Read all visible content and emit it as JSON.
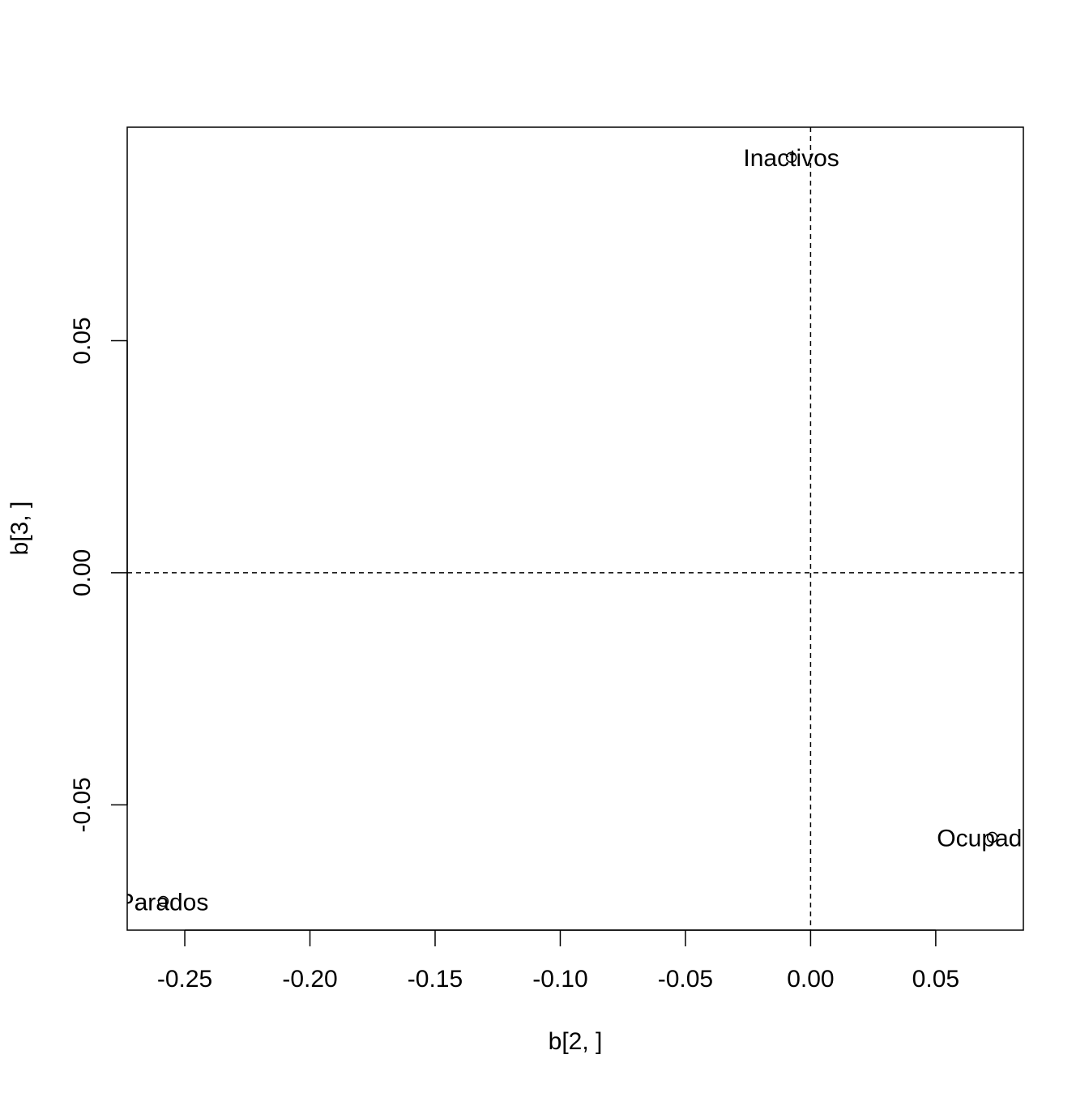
{
  "chart_data": {
    "type": "scatter",
    "title": "",
    "xlabel": "b[2, ]",
    "ylabel": "b[3, ]",
    "xlim": [
      -0.273,
      0.085
    ],
    "ylim": [
      -0.077,
      0.096
    ],
    "x_ticks": [
      {
        "value": -0.25,
        "label": "-0.25"
      },
      {
        "value": -0.2,
        "label": "-0.20"
      },
      {
        "value": -0.15,
        "label": "-0.15"
      },
      {
        "value": -0.1,
        "label": "-0.10"
      },
      {
        "value": -0.05,
        "label": "-0.05"
      },
      {
        "value": 0.0,
        "label": "0.00"
      },
      {
        "value": 0.05,
        "label": "0.05"
      }
    ],
    "y_ticks": [
      {
        "value": -0.05,
        "label": "-0.05"
      },
      {
        "value": 0.0,
        "label": "0.00"
      },
      {
        "value": 0.05,
        "label": "0.05"
      }
    ],
    "reference_lines": {
      "x": 0,
      "y": 0,
      "style": "dashed"
    },
    "grid": false,
    "points": [
      {
        "label": "Inactivos",
        "x": -0.0077,
        "y": 0.0895
      },
      {
        "label": "Ocupados",
        "x": 0.0726,
        "y": -0.057
      },
      {
        "label": "Parados",
        "x": -0.2586,
        "y": -0.0708
      }
    ],
    "point_color": "#000000"
  }
}
